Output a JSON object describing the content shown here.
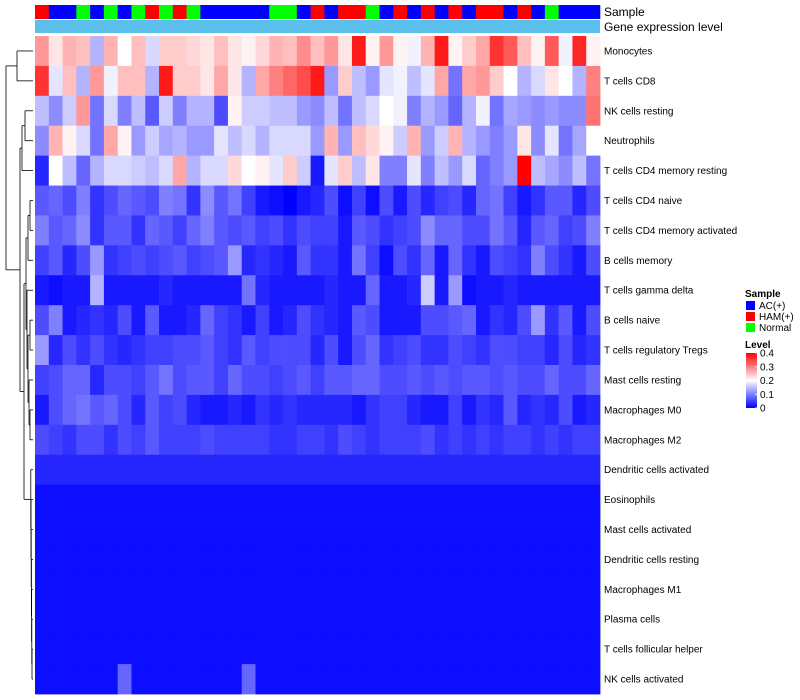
{
  "chart_data": {
    "type": "heatmap",
    "title": "",
    "annotation_rows": [
      {
        "label": "Sample",
        "groups": [
          "HAM(+)",
          "AC(+)",
          "AC(+)",
          "Normal",
          "AC(+)",
          "Normal",
          "AC(+)",
          "Normal",
          "HAM(+)",
          "Normal",
          "HAM(+)",
          "Normal",
          "AC(+)",
          "AC(+)",
          "AC(+)",
          "AC(+)",
          "AC(+)",
          "Normal",
          "Normal",
          "AC(+)",
          "HAM(+)",
          "AC(+)",
          "HAM(+)",
          "HAM(+)",
          "Normal",
          "AC(+)",
          "HAM(+)",
          "AC(+)",
          "HAM(+)",
          "AC(+)",
          "HAM(+)",
          "AC(+)",
          "HAM(+)",
          "HAM(+)",
          "AC(+)",
          "HAM(+)",
          "AC(+)",
          "Normal",
          "AC(+)",
          "AC(+)",
          "AC(+)"
        ]
      },
      {
        "label": "Gene expression level",
        "color": "#5bc0eb"
      }
    ],
    "rows": [
      "Monocytes",
      "T cells CD8",
      "NK cells resting",
      "Neutrophils",
      "T cells CD4 memory resting",
      "T cells CD4 naive",
      "T cells CD4 memory activated",
      "B cells memory",
      "T cells gamma delta",
      "B cells naive",
      "T cells regulatory  Tregs",
      "Mast cells resting",
      "Macrophages M0",
      "Macrophages M2",
      "Dendritic cells activated",
      "Eosinophils",
      "Mast cells activated",
      "Dendritic cells resting",
      "Macrophages M1",
      "Plasma cells",
      "T cells follicular helper",
      "NK cells activated"
    ],
    "values": [
      [
        0.28,
        0.22,
        0.26,
        0.25,
        0.14,
        0.26,
        0.2,
        0.25,
        0.17,
        0.24,
        0.24,
        0.23,
        0.22,
        0.25,
        0.22,
        0.21,
        0.23,
        0.26,
        0.25,
        0.29,
        0.25,
        0.28,
        0.22,
        0.38,
        0.21,
        0.28,
        0.21,
        0.19,
        0.26,
        0.38,
        0.21,
        0.24,
        0.27,
        0.36,
        0.33,
        0.25,
        0.21,
        0.33,
        0.19,
        0.37,
        0.21
      ],
      [
        0.36,
        0.18,
        0.25,
        0.14,
        0.28,
        0.19,
        0.25,
        0.25,
        0.14,
        0.38,
        0.24,
        0.24,
        0.22,
        0.27,
        0.22,
        0.14,
        0.27,
        0.3,
        0.32,
        0.34,
        0.38,
        0.12,
        0.24,
        0.15,
        0.12,
        0.18,
        0.19,
        0.15,
        0.18,
        0.27,
        0.09,
        0.27,
        0.28,
        0.24,
        0.2,
        0.14,
        0.17,
        0.22,
        0.2,
        0.14,
        0.3
      ],
      [
        0.15,
        0.11,
        0.16,
        0.28,
        0.09,
        0.17,
        0.1,
        0.15,
        0.07,
        0.16,
        0.1,
        0.14,
        0.14,
        0.06,
        0.21,
        0.16,
        0.16,
        0.15,
        0.15,
        0.12,
        0.11,
        0.15,
        0.09,
        0.15,
        0.17,
        0.2,
        0.19,
        0.1,
        0.14,
        0.12,
        0.08,
        0.14,
        0.19,
        0.09,
        0.13,
        0.12,
        0.11,
        0.12,
        0.11,
        0.11,
        0.31
      ],
      [
        0.11,
        0.26,
        0.21,
        0.17,
        0.09,
        0.27,
        0.21,
        0.12,
        0.16,
        0.13,
        0.14,
        0.12,
        0.12,
        0.18,
        0.15,
        0.17,
        0.14,
        0.17,
        0.17,
        0.17,
        0.12,
        0.26,
        0.12,
        0.25,
        0.23,
        0.21,
        0.16,
        0.26,
        0.12,
        0.16,
        0.26,
        0.14,
        0.12,
        0.1,
        0.12,
        0.22,
        0.11,
        0.18,
        0.09,
        0.13,
        0.2
      ],
      [
        0.03,
        0.2,
        0.15,
        0.08,
        0.14,
        0.17,
        0.17,
        0.16,
        0.15,
        0.17,
        0.27,
        0.14,
        0.17,
        0.17,
        0.23,
        0.2,
        0.21,
        0.18,
        0.24,
        0.16,
        0.02,
        0.18,
        0.24,
        0.15,
        0.22,
        0.1,
        0.1,
        0.18,
        0.1,
        0.15,
        0.12,
        0.17,
        0.08,
        0.1,
        0.12,
        0.41,
        0.15,
        0.13,
        0.11,
        0.15,
        0.09
      ],
      [
        0.07,
        0.08,
        0.06,
        0.1,
        0.04,
        0.06,
        0.08,
        0.07,
        0.06,
        0.1,
        0.09,
        0.04,
        0.11,
        0.07,
        0.09,
        0.05,
        0.02,
        0.01,
        0.0,
        0.02,
        0.03,
        0.06,
        0.01,
        0.05,
        0.01,
        0.06,
        0.02,
        0.06,
        0.03,
        0.05,
        0.06,
        0.03,
        0.08,
        0.09,
        0.05,
        0.02,
        0.04,
        0.07,
        0.07,
        0.03,
        0.06
      ],
      [
        0.1,
        0.07,
        0.08,
        0.11,
        0.04,
        0.07,
        0.07,
        0.04,
        0.08,
        0.07,
        0.05,
        0.08,
        0.1,
        0.07,
        0.06,
        0.07,
        0.05,
        0.06,
        0.04,
        0.06,
        0.05,
        0.05,
        0.02,
        0.07,
        0.06,
        0.04,
        0.05,
        0.06,
        0.11,
        0.08,
        0.08,
        0.06,
        0.06,
        0.09,
        0.07,
        0.03,
        0.07,
        0.08,
        0.05,
        0.06,
        0.1
      ],
      [
        0.05,
        0.07,
        0.03,
        0.06,
        0.12,
        0.04,
        0.05,
        0.06,
        0.05,
        0.06,
        0.07,
        0.05,
        0.06,
        0.07,
        0.12,
        0.03,
        0.04,
        0.03,
        0.02,
        0.07,
        0.04,
        0.04,
        0.02,
        0.09,
        0.05,
        0.01,
        0.06,
        0.04,
        0.08,
        0.02,
        0.08,
        0.04,
        0.02,
        0.06,
        0.05,
        0.04,
        0.1,
        0.06,
        0.04,
        0.02,
        0.06
      ],
      [
        0.02,
        0.01,
        0.02,
        0.02,
        0.14,
        0.02,
        0.02,
        0.02,
        0.02,
        0.03,
        0.02,
        0.02,
        0.02,
        0.02,
        0.02,
        0.09,
        0.03,
        0.02,
        0.02,
        0.02,
        0.02,
        0.03,
        0.02,
        0.02,
        0.08,
        0.02,
        0.02,
        0.03,
        0.16,
        0.02,
        0.12,
        0.01,
        0.02,
        0.02,
        0.03,
        0.02,
        0.02,
        0.02,
        0.02,
        0.02,
        0.02
      ],
      [
        0.06,
        0.1,
        0.02,
        0.03,
        0.04,
        0.03,
        0.06,
        0.02,
        0.07,
        0.02,
        0.02,
        0.03,
        0.08,
        0.05,
        0.04,
        0.02,
        0.05,
        0.02,
        0.03,
        0.06,
        0.04,
        0.03,
        0.02,
        0.07,
        0.06,
        0.02,
        0.02,
        0.02,
        0.06,
        0.06,
        0.07,
        0.08,
        0.02,
        0.04,
        0.03,
        0.06,
        0.12,
        0.04,
        0.07,
        0.02,
        0.06
      ],
      [
        0.12,
        0.03,
        0.06,
        0.04,
        0.06,
        0.04,
        0.03,
        0.04,
        0.05,
        0.05,
        0.06,
        0.06,
        0.07,
        0.05,
        0.04,
        0.07,
        0.05,
        0.06,
        0.06,
        0.06,
        0.03,
        0.06,
        0.02,
        0.06,
        0.08,
        0.04,
        0.05,
        0.06,
        0.04,
        0.04,
        0.06,
        0.05,
        0.04,
        0.06,
        0.06,
        0.05,
        0.05,
        0.03,
        0.06,
        0.03,
        0.04
      ],
      [
        0.05,
        0.06,
        0.08,
        0.08,
        0.03,
        0.06,
        0.06,
        0.05,
        0.07,
        0.09,
        0.06,
        0.07,
        0.07,
        0.05,
        0.08,
        0.06,
        0.06,
        0.05,
        0.06,
        0.07,
        0.05,
        0.07,
        0.07,
        0.08,
        0.08,
        0.06,
        0.06,
        0.07,
        0.06,
        0.07,
        0.06,
        0.07,
        0.07,
        0.06,
        0.07,
        0.06,
        0.06,
        0.08,
        0.06,
        0.06,
        0.08
      ],
      [
        0.02,
        0.06,
        0.08,
        0.09,
        0.07,
        0.08,
        0.06,
        0.03,
        0.07,
        0.05,
        0.06,
        0.03,
        0.02,
        0.02,
        0.03,
        0.02,
        0.04,
        0.03,
        0.04,
        0.03,
        0.03,
        0.03,
        0.03,
        0.02,
        0.04,
        0.05,
        0.05,
        0.03,
        0.02,
        0.02,
        0.05,
        0.02,
        0.04,
        0.03,
        0.07,
        0.03,
        0.04,
        0.03,
        0.06,
        0.02,
        0.03
      ],
      [
        0.06,
        0.05,
        0.04,
        0.06,
        0.06,
        0.04,
        0.06,
        0.05,
        0.07,
        0.05,
        0.05,
        0.05,
        0.06,
        0.05,
        0.05,
        0.05,
        0.05,
        0.04,
        0.04,
        0.05,
        0.05,
        0.04,
        0.06,
        0.05,
        0.04,
        0.05,
        0.05,
        0.05,
        0.06,
        0.04,
        0.05,
        0.04,
        0.05,
        0.04,
        0.05,
        0.05,
        0.04,
        0.05,
        0.04,
        0.05,
        0.05
      ],
      [
        0.03,
        0.03,
        0.03,
        0.03,
        0.03,
        0.03,
        0.03,
        0.03,
        0.03,
        0.03,
        0.03,
        0.03,
        0.03,
        0.03,
        0.03,
        0.03,
        0.03,
        0.03,
        0.03,
        0.03,
        0.03,
        0.03,
        0.03,
        0.03,
        0.03,
        0.03,
        0.03,
        0.03,
        0.03,
        0.03,
        0.03,
        0.03,
        0.03,
        0.03,
        0.03,
        0.03,
        0.03,
        0.03,
        0.03,
        0.03,
        0.03
      ],
      [
        0.01,
        0.01,
        0.01,
        0.01,
        0.01,
        0.01,
        0.01,
        0.01,
        0.01,
        0.01,
        0.01,
        0.01,
        0.01,
        0.01,
        0.01,
        0.01,
        0.01,
        0.01,
        0.01,
        0.01,
        0.01,
        0.01,
        0.01,
        0.01,
        0.01,
        0.01,
        0.01,
        0.01,
        0.01,
        0.01,
        0.01,
        0.01,
        0.01,
        0.01,
        0.01,
        0.01,
        0.01,
        0.01,
        0.01,
        0.01,
        0.01
      ],
      [
        0.01,
        0.01,
        0.01,
        0.01,
        0.01,
        0.01,
        0.01,
        0.01,
        0.01,
        0.01,
        0.01,
        0.01,
        0.01,
        0.01,
        0.01,
        0.01,
        0.01,
        0.01,
        0.01,
        0.01,
        0.01,
        0.01,
        0.01,
        0.01,
        0.01,
        0.01,
        0.01,
        0.01,
        0.01,
        0.01,
        0.01,
        0.01,
        0.01,
        0.01,
        0.01,
        0.01,
        0.01,
        0.01,
        0.01,
        0.01,
        0.01
      ],
      [
        0.01,
        0.01,
        0.01,
        0.01,
        0.01,
        0.01,
        0.01,
        0.01,
        0.01,
        0.01,
        0.01,
        0.01,
        0.01,
        0.01,
        0.01,
        0.01,
        0.01,
        0.01,
        0.01,
        0.01,
        0.01,
        0.01,
        0.01,
        0.01,
        0.01,
        0.01,
        0.01,
        0.01,
        0.01,
        0.01,
        0.01,
        0.01,
        0.01,
        0.01,
        0.01,
        0.01,
        0.01,
        0.01,
        0.01,
        0.01,
        0.01
      ],
      [
        0.01,
        0.01,
        0.01,
        0.01,
        0.01,
        0.01,
        0.01,
        0.01,
        0.01,
        0.01,
        0.01,
        0.01,
        0.01,
        0.01,
        0.01,
        0.01,
        0.01,
        0.01,
        0.01,
        0.01,
        0.01,
        0.01,
        0.01,
        0.01,
        0.01,
        0.01,
        0.01,
        0.01,
        0.01,
        0.01,
        0.01,
        0.01,
        0.01,
        0.01,
        0.01,
        0.01,
        0.01,
        0.01,
        0.01,
        0.01,
        0.01
      ],
      [
        0.01,
        0.01,
        0.01,
        0.01,
        0.01,
        0.01,
        0.01,
        0.01,
        0.01,
        0.01,
        0.01,
        0.01,
        0.01,
        0.01,
        0.01,
        0.01,
        0.01,
        0.01,
        0.01,
        0.01,
        0.01,
        0.01,
        0.01,
        0.01,
        0.01,
        0.01,
        0.01,
        0.01,
        0.01,
        0.01,
        0.01,
        0.01,
        0.01,
        0.01,
        0.01,
        0.01,
        0.01,
        0.01,
        0.01,
        0.01,
        0.01
      ],
      [
        0.01,
        0.01,
        0.01,
        0.01,
        0.01,
        0.01,
        0.01,
        0.01,
        0.01,
        0.01,
        0.01,
        0.01,
        0.01,
        0.01,
        0.01,
        0.01,
        0.01,
        0.01,
        0.01,
        0.01,
        0.01,
        0.01,
        0.01,
        0.01,
        0.01,
        0.01,
        0.01,
        0.01,
        0.01,
        0.01,
        0.01,
        0.01,
        0.01,
        0.01,
        0.01,
        0.01,
        0.01,
        0.01,
        0.01,
        0.01,
        0.01
      ],
      [
        0.01,
        0.01,
        0.01,
        0.01,
        0.01,
        0.01,
        0.08,
        0.01,
        0.01,
        0.01,
        0.01,
        0.01,
        0.01,
        0.01,
        0.01,
        0.08,
        0.01,
        0.01,
        0.01,
        0.01,
        0.01,
        0.01,
        0.01,
        0.01,
        0.01,
        0.01,
        0.01,
        0.01,
        0.01,
        0.01,
        0.01,
        0.01,
        0.01,
        0.01,
        0.01,
        0.01,
        0.01,
        0.01,
        0.01,
        0.01,
        0.01
      ]
    ],
    "color_scale": {
      "min": 0,
      "mid": 0.2,
      "max": 0.4,
      "low": "#0000ff",
      "midColor": "#ffffff",
      "high": "#ff0000"
    },
    "legend": {
      "sample": {
        "title": "Sample",
        "items": [
          {
            "label": "AC(+)",
            "color": "#0000ff"
          },
          {
            "label": "HAM(+)",
            "color": "#ff0000"
          },
          {
            "label": "Normal",
            "color": "#00ff00"
          }
        ]
      },
      "level": {
        "title": "Level",
        "ticks": [
          "0.4",
          "0.3",
          "0.2",
          "0.1",
          "0"
        ]
      }
    }
  }
}
